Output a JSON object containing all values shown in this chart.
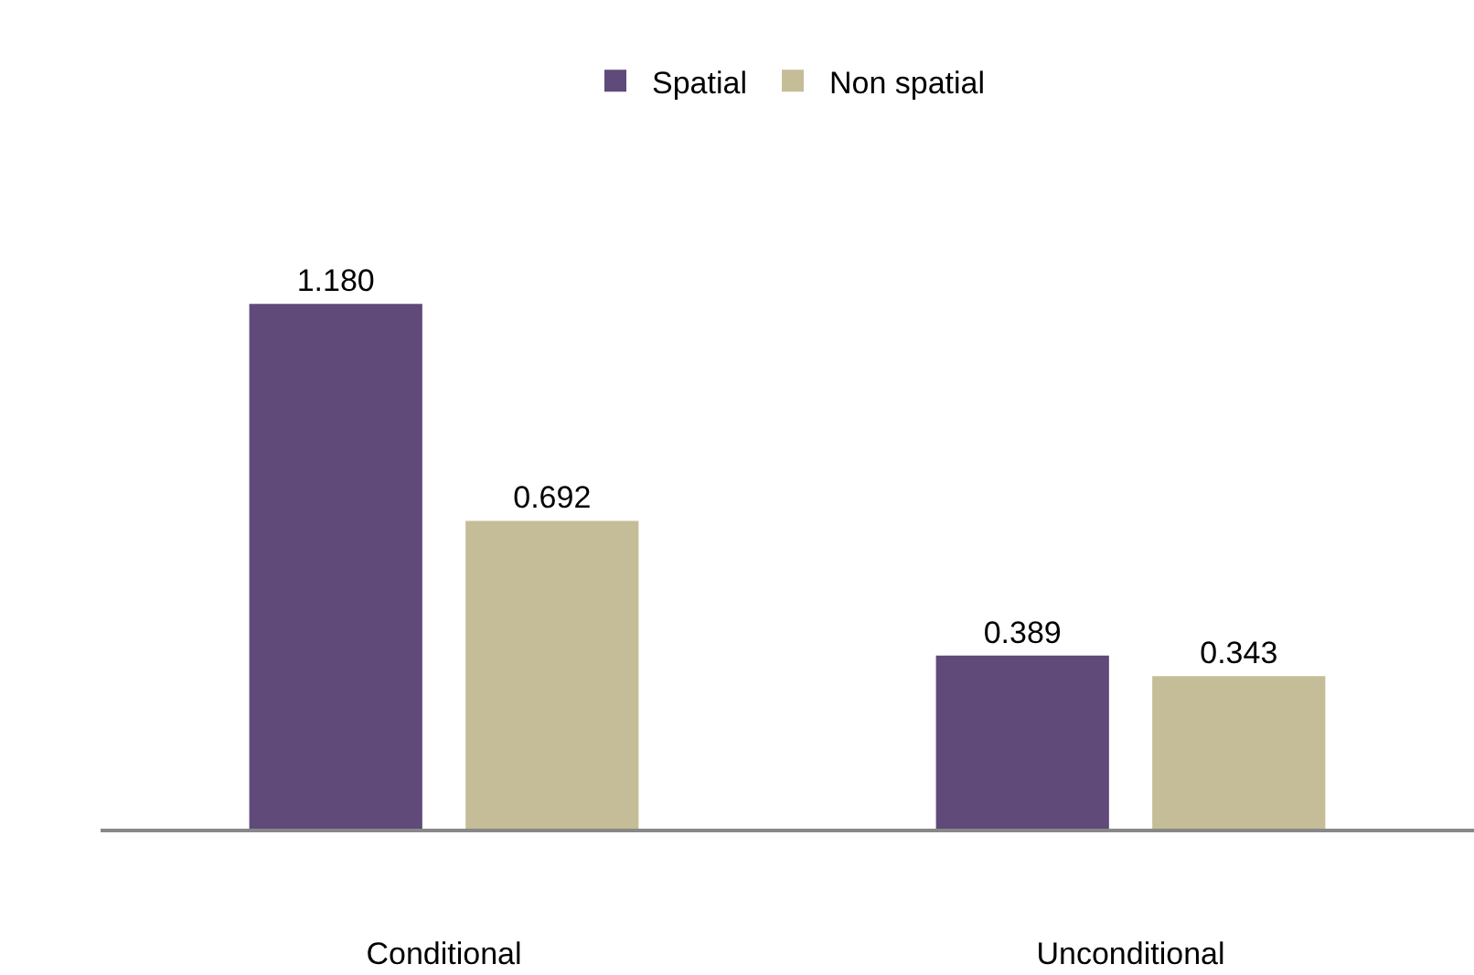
{
  "chart_data": {
    "type": "bar",
    "categories": [
      "Conditional",
      "Unconditional"
    ],
    "series": [
      {
        "name": "Spatial",
        "color": "#5f4a7a",
        "values": [
          1.18,
          0.389
        ],
        "value_labels": [
          "1.180",
          "0.389"
        ]
      },
      {
        "name": "Non spatial",
        "color": "#c4bd97",
        "values": [
          0.692,
          0.343
        ],
        "value_labels": [
          "0.692",
          "0.343"
        ]
      }
    ],
    "legend": "top",
    "tick_labels": "x"
  }
}
